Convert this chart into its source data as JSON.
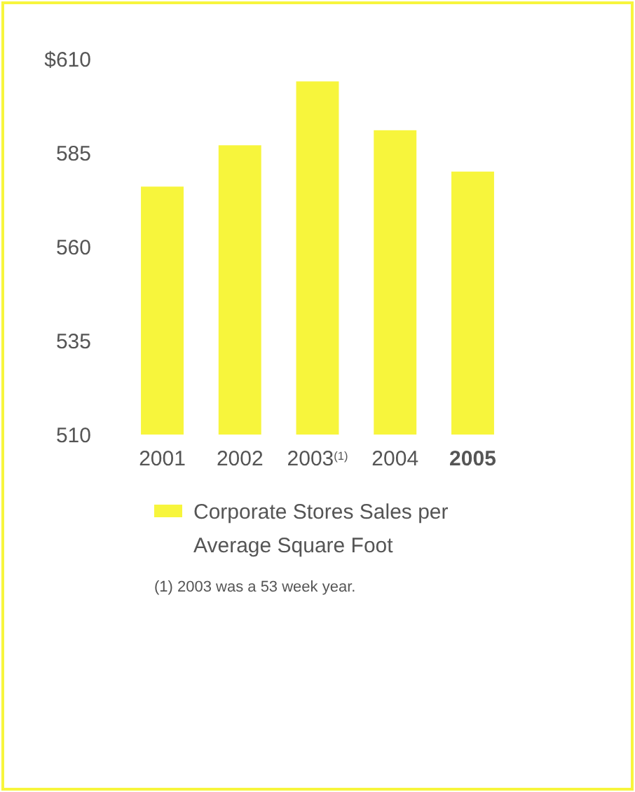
{
  "chart_data": {
    "type": "bar",
    "categories": [
      "2001",
      "2002",
      "2003$^{(1)}$",
      "2004",
      "2005"
    ],
    "series": [
      {
        "name": "Corporate Stores Sales per Average Square Foot",
        "color": "#f7f53c",
        "values": [
          576,
          587,
          604,
          591,
          580
        ]
      }
    ],
    "ylim": [
      510,
      610
    ],
    "yticks": [
      510,
      535,
      560,
      585,
      {
        "value": 610,
        "label": "$610"
      }
    ],
    "legend": "bottom",
    "grid": false,
    "annotations": [
      "(1) 2003 was a 53 week year."
    ]
  }
}
